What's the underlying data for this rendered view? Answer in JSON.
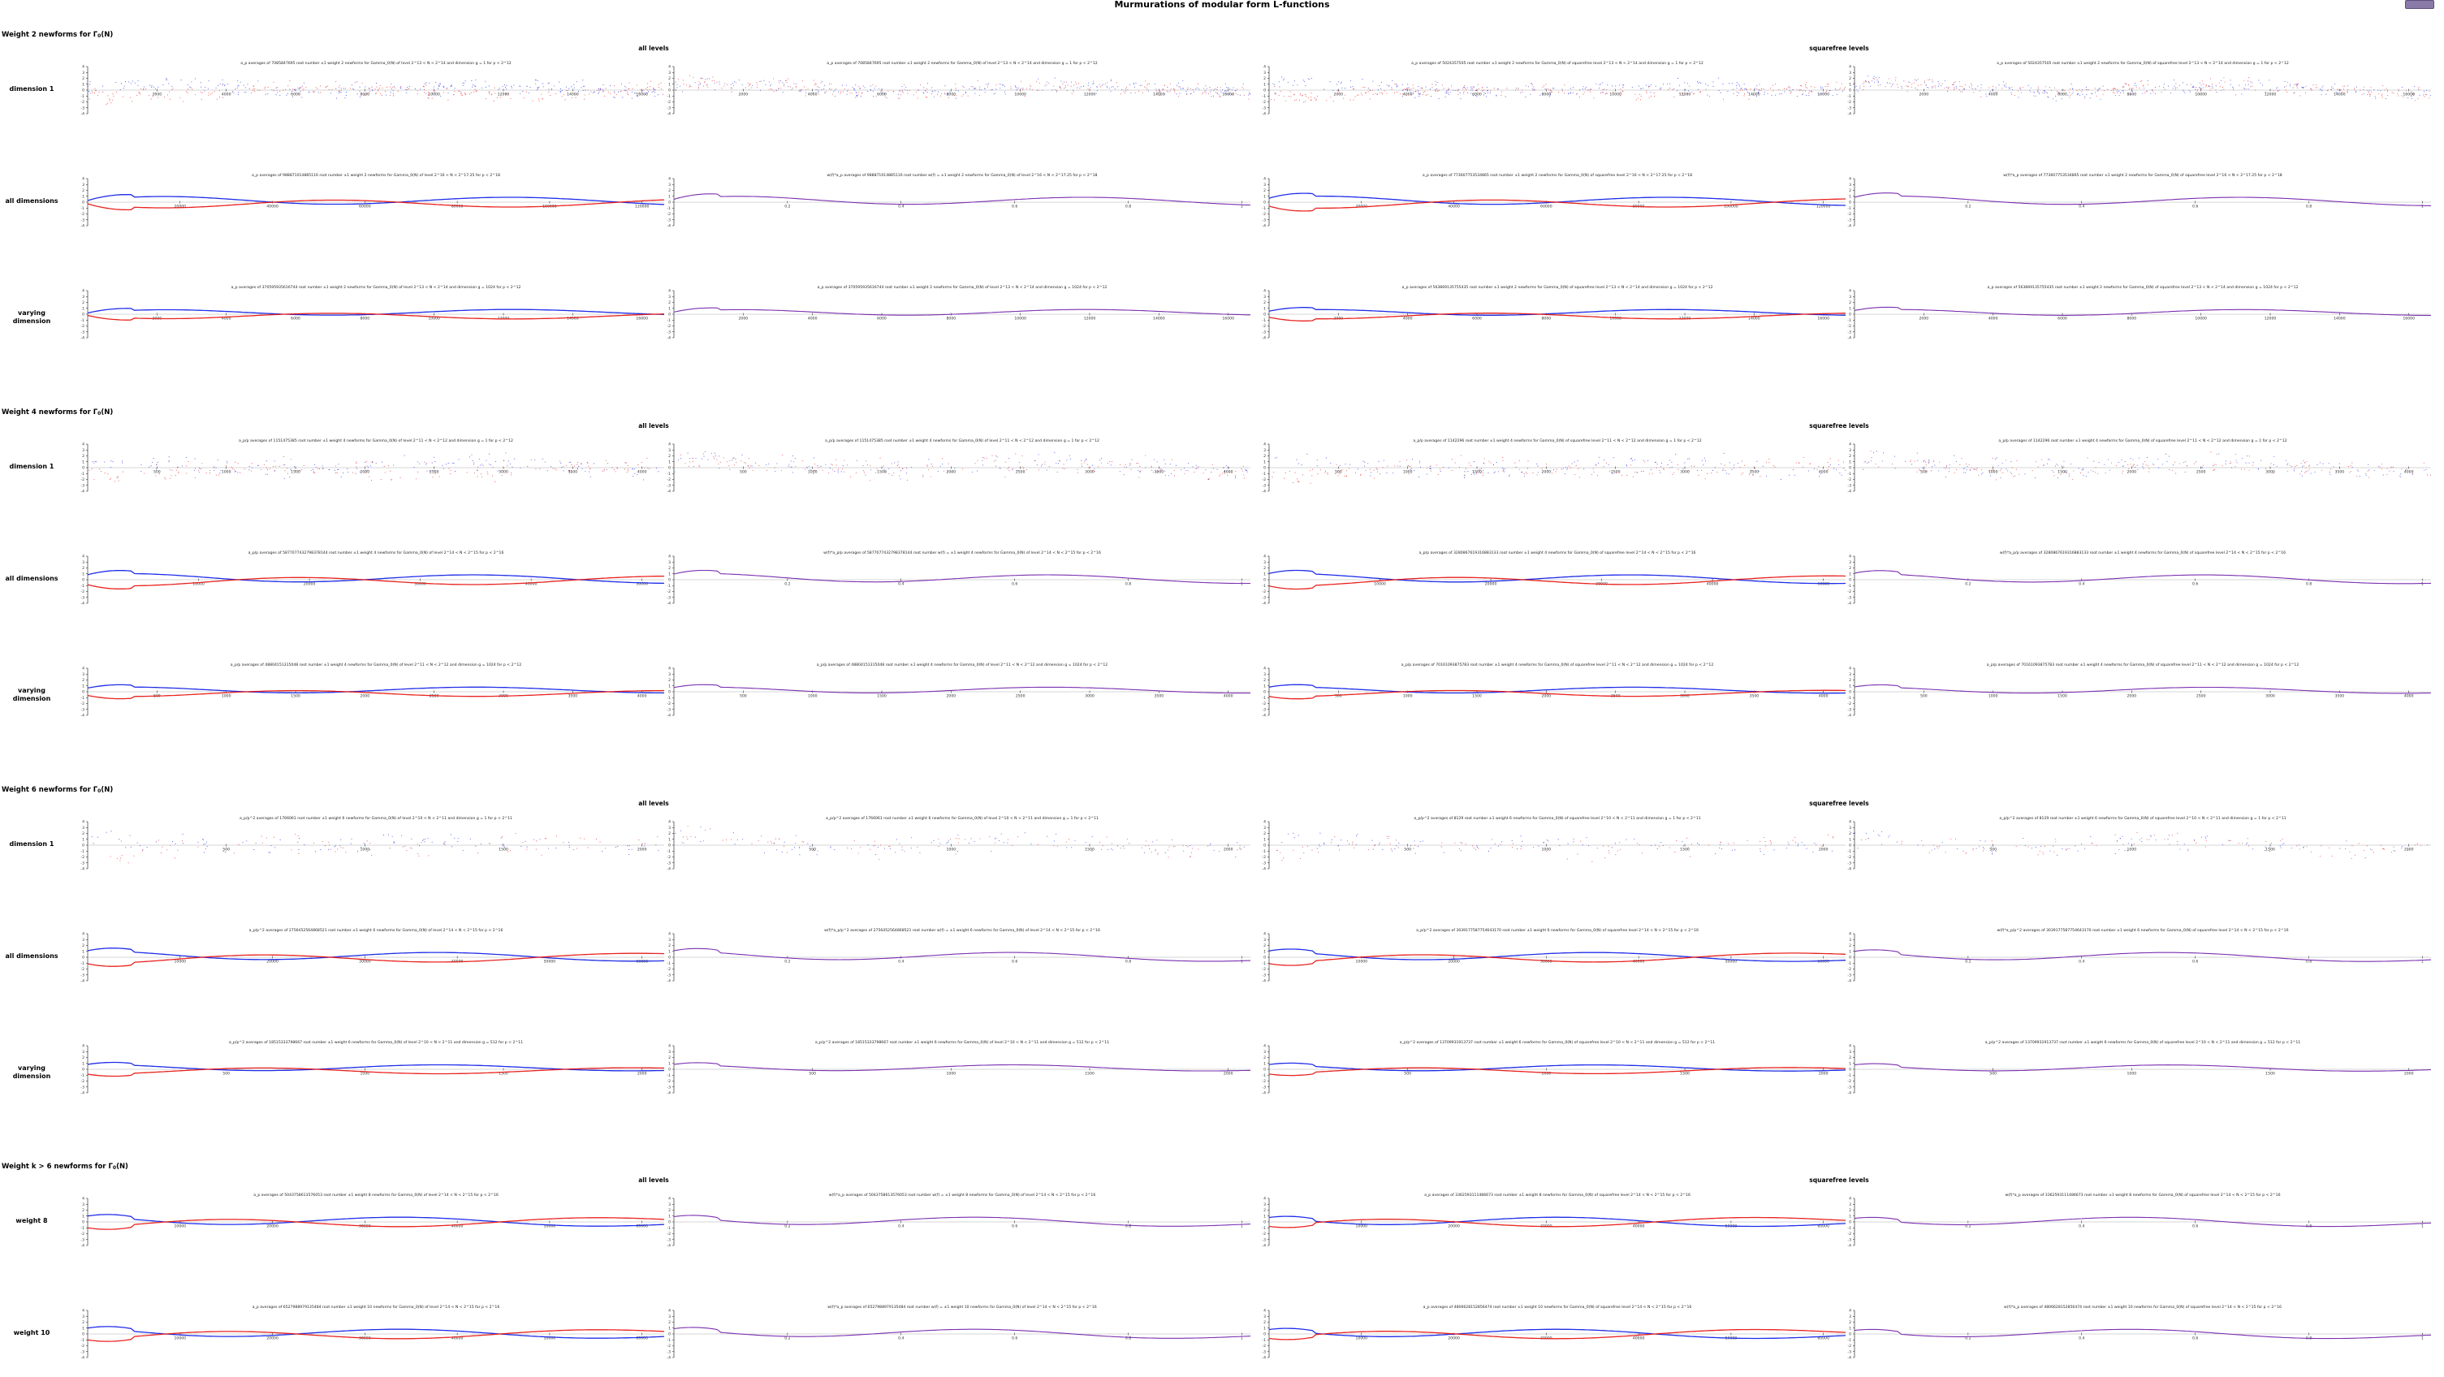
{
  "page": {
    "title": "Murmurations of modular form L-functions",
    "menu_button_label": "",
    "colors": {
      "odd": "#e8231f",
      "even": "#1f2de8",
      "combined": "#7a2fb0",
      "axis": "#111111",
      "zero_line": "#9a9a9a"
    }
  },
  "sections": [
    {
      "heading": {
        "prefix": "Weight 2 newforms for ",
        "symbol": "Γ",
        "subscript": "0",
        "suffix": "(N)"
      },
      "columns": [
        "all levels",
        "squarefree levels"
      ],
      "rows": [
        {
          "label": "dimension 1",
          "mode": "scatter",
          "panel_titles": [
            "a_p averages of 7085847695 root number ±1 weight 2 newforms for Gamma_0(N) of level 2^13 < N < 2^14 and dimension g = 1 for p < 2^12",
            "a_p averages of 7085847695 root number ±1 weight 2 newforms for Gamma_0(N) of level 2^13 < N < 2^14 and dimension g = 1 for p < 2^12",
            "a_p averages of 5024357505 root number ±1 weight 2 newforms for Gamma_0(N) of squarefree level 2^13 < N < 2^14 and dimension g = 1 for p < 2^12",
            "a_p averages of 5024357505 root number ±1 weight 2 newforms for Gamma_0(N) of squarefree level 2^13 < N < 2^14 and dimension g = 1 for p < 2^12"
          ]
        },
        {
          "label": "all dimensions",
          "mode": "line",
          "panel_titles": [
            "a_p averages of 988871014885116 root number ±1 weight 2 newforms for Gamma_0(N) of level 2^16 < N < 2^17.25 for p < 2^18",
            "w(f)*a_p averages of 988871014885116 root number w(f) = ±1 weight 2 newforms for Gamma_0(N) of level 2^16 < N < 2^17.25 for p < 2^18",
            "a_p averages of 773607753534865 root number ±1 weight 2 newforms for Gamma_0(N) of squarefree level 2^16 < N < 2^17.25 for p < 2^18",
            "w(f)*a_p averages of 773607753534865 root number ±1 weight 2 newforms for Gamma_0(N) of squarefree level 2^16 < N < 2^17.25 for p < 2^18"
          ]
        },
        {
          "label": "varying dimension",
          "mode": "line",
          "panel_titles": [
            "a_p averages of 370595935616744 root number ±1 weight 2 newforms for Gamma_0(N) of level 2^13 < N < 2^14 and dimension g = 1024 for p < 2^12",
            "a_p averages of 370595935616744 root number ±1 weight 2 newforms for Gamma_0(N) of level 2^13 < N < 2^14 and dimension g = 1024 for p < 2^12",
            "a_p averages of 563869135755435 root number ±1 weight 2 newforms for Gamma_0(N) of squarefree level 2^13 < N < 2^14 and dimension g = 1024 for p < 2^12",
            "a_p averages of 563869135755435 root number ±1 weight 2 newforms for Gamma_0(N) of squarefree level 2^13 < N < 2^14 and dimension g = 1024 for p < 2^12"
          ]
        }
      ]
    },
    {
      "heading": {
        "prefix": "Weight 4 newforms for ",
        "symbol": "Γ",
        "subscript": "0",
        "suffix": "(N)"
      },
      "columns": [
        "all levels",
        "squarefree levels"
      ],
      "rows": [
        {
          "label": "dimension 1",
          "mode": "scatter",
          "panel_titles": [
            "a_p/p averages of 1151475385 root number ±1 weight 4 newforms for Gamma_0(N) of level 2^11 < N < 2^12 and dimension g = 1 for p < 2^12",
            "a_p/p averages of 1151475385 root number ±1 weight 4 newforms for Gamma_0(N) of level 2^11 < N < 2^12 and dimension g = 1 for p < 2^12",
            "a_p/p averages of 1142296 root number ±1 weight 4 newforms for Gamma_0(N) of squarefree level 2^11 < N < 2^12 and dimension g = 1 for p < 2^12",
            "a_p/p averages of 1142296 root number ±1 weight 4 newforms for Gamma_0(N) of squarefree level 2^11 < N < 2^12 and dimension g = 1 for p < 2^12"
          ]
        },
        {
          "label": "all dimensions",
          "mode": "line",
          "panel_titles": [
            "a_p/p averages of 5877077432798378144 root number ±1 weight 4 newforms for Gamma_0(N) of level 2^14 < N < 2^15 for p < 2^16",
            "w(f)*a_p/p averages of 5877077432798378144 root number w(f) = ±1 weight 4 newforms for Gamma_0(N) of level 2^14 < N < 2^15 for p < 2^16",
            "a_p/p averages of 3280867619316883133 root number ±1 weight 4 newforms for Gamma_0(N) of squarefree level 2^14 < N < 2^15 for p < 2^16",
            "w(f)*a_p/p averages of 3280867619316883133 root number ±1 weight 4 newforms for Gamma_0(N) of squarefree level 2^14 < N < 2^15 for p < 2^16"
          ]
        },
        {
          "label": "varying dimension",
          "mode": "line",
          "panel_titles": [
            "a_p/p averages of 48804151315048 root number ±1 weight 4 newforms for Gamma_0(N) of level 2^11 < N < 2^12 and dimension g = 1024 for p < 2^12",
            "a_p/p averages of 48804151315048 root number ±1 weight 4 newforms for Gamma_0(N) of level 2^11 < N < 2^12 and dimension g = 1024 for p < 2^12",
            "a_p/p averages of 70161093875783 root number ±1 weight 4 newforms for Gamma_0(N) of squarefree level 2^11 < N < 2^12 and dimension g = 1024 for p < 2^12",
            "a_p/p averages of 70161093875783 root number ±1 weight 4 newforms for Gamma_0(N) of squarefree level 2^11 < N < 2^12 and dimension g = 1024 for p < 2^12"
          ]
        }
      ]
    },
    {
      "heading": {
        "prefix": "Weight 6 newforms for ",
        "symbol": "Γ",
        "subscript": "0",
        "suffix": "(N)"
      },
      "columns": [
        "all levels",
        "squarefree levels"
      ],
      "rows": [
        {
          "label": "dimension 1",
          "mode": "scatter",
          "panel_titles": [
            "a_p/p^2 averages of 1766061 root number ±1 weight 6 newforms for Gamma_0(N) of level 2^10 < N < 2^11 and dimension g = 1 for p < 2^11",
            "a_p/p^2 averages of 1766061 root number ±1 weight 6 newforms for Gamma_0(N) of level 2^10 < N < 2^11 and dimension g = 1 for p < 2^11",
            "a_p/p^2 averages of 8129 root number ±1 weight 6 newforms for Gamma_0(N) of squarefree level 2^10 < N < 2^11 and dimension g = 1 for p < 2^11",
            "a_p/p^2 averages of 8129 root number ±1 weight 6 newforms for Gamma_0(N) of squarefree level 2^10 < N < 2^11 and dimension g = 1 for p < 2^11"
          ]
        },
        {
          "label": "all dimensions",
          "mode": "line",
          "panel_titles": [
            "a_p/p^2 averages of 2756452564868521 root number ±1 weight 6 newforms for Gamma_0(N) of level 2^14 < N < 2^15 for p < 2^16",
            "w(f)*a_p/p^2 averages of 2756452564868521 root number w(f) = ±1 weight 6 newforms for Gamma_0(N) of level 2^14 < N < 2^15 for p < 2^16",
            "a_p/p^2 averages of 3039177587754643170 root number ±1 weight 6 newforms for Gamma_0(N) of squarefree level 2^14 < N < 2^15 for p < 2^16",
            "w(f)*a_p/p^2 averages of 3039177587754643170 root number ±1 weight 6 newforms for Gamma_0(N) of squarefree level 2^14 < N < 2^15 for p < 2^16"
          ]
        },
        {
          "label": "varying dimension",
          "mode": "line",
          "panel_titles": [
            "a_p/p^2 averages of 18515333798667 root number ±1 weight 6 newforms for Gamma_0(N) of level 2^10 < N < 2^11 and dimension g = 512 for p < 2^11",
            "a_p/p^2 averages of 18515333798667 root number ±1 weight 6 newforms for Gamma_0(N) of level 2^10 < N < 2^11 and dimension g = 512 for p < 2^11",
            "a_p/p^2 averages of 13709931913737 root number ±1 weight 6 newforms for Gamma_0(N) of squarefree level 2^10 < N < 2^11 and dimension g = 512 for p < 2^11",
            "a_p/p^2 averages of 13709931913737 root number ±1 weight 6 newforms for Gamma_0(N) of squarefree level 2^10 < N < 2^11 and dimension g = 512 for p < 2^11"
          ]
        }
      ]
    },
    {
      "heading": {
        "prefix": "Weight k > 6 newforms for ",
        "symbol": "Γ",
        "subscript": "0",
        "suffix": "(N)"
      },
      "columns": [
        "all levels",
        "squarefree levels"
      ],
      "rows": [
        {
          "label": "weight 8",
          "mode": "line",
          "panel_titles": [
            "a_p averages of 5043758613576053 root number ±1 weight 8 newforms for Gamma_0(N) of level 2^14 < N < 2^15 for p < 2^16",
            "w(f)*a_p averages of 5043758613576053 root number w(f) = ±1 weight 8 newforms for Gamma_0(N) of level 2^14 < N < 2^15 for p < 2^16",
            "a_p averages of 3362593111486673 root number ±1 weight 8 newforms for Gamma_0(N) of squarefree level 2^14 < N < 2^15 for p < 2^16",
            "w(f)*a_p averages of 3362593111486673 root number ±1 weight 8 newforms for Gamma_0(N) of squarefree level 2^14 < N < 2^15 for p < 2^16"
          ]
        },
        {
          "label": "weight 10",
          "mode": "line",
          "panel_titles": [
            "a_p averages of 6527988979135484 root number ±1 weight 10 newforms for Gamma_0(N) of level 2^14 < N < 2^15 for p < 2^16",
            "w(f)*a_p averages of 6527988979135484 root number w(f) = ±1 weight 10 newforms for Gamma_0(N) of level 2^14 < N < 2^15 for p < 2^16",
            "a_p averages of 4806628152856474 root number ±1 weight 10 newforms for Gamma_0(N) of squarefree level 2^14 < N < 2^15 for p < 2^16",
            "w(f)*a_p averages of 4806628152856474 root number ±1 weight 10 newforms for Gamma_0(N) of squarefree level 2^14 < N < 2^15 for p < 2^16"
          ]
        }
      ]
    }
  ],
  "chart_data": {
    "type": "scatter",
    "description_of_series": [
      "root number +1 (blue)",
      "root number -1 (red)",
      "w(f)*a_p combined (purple)"
    ],
    "y_ticks": [
      -4,
      -3,
      -2,
      -1,
      0,
      1,
      2,
      3,
      4
    ],
    "ylim": [
      -4,
      4
    ],
    "x_ticks_prime_panels": {
      "weight2_dim1": [
        2000,
        4000,
        6000,
        8000,
        10000,
        12000,
        14000,
        16000
      ],
      "weight2_alldim": [
        20000,
        40000,
        60000,
        80000,
        100000,
        120000
      ],
      "weight2_vardim": [
        2000,
        4000,
        6000,
        8000,
        10000,
        12000,
        14000,
        16000
      ],
      "weight4_dim1": [
        500,
        1000,
        1500,
        2000,
        2500,
        3000,
        3500,
        4000
      ],
      "weight4_alldim": [
        10000,
        20000,
        30000,
        40000,
        50000
      ],
      "weight4_vardim": [
        500,
        1000,
        1500,
        2000,
        2500,
        3000,
        3500,
        4000
      ],
      "weight6_dim1": [
        500,
        1000,
        1500,
        2000
      ],
      "weight6_alldim": [
        10000,
        20000,
        30000,
        40000,
        50000,
        60000
      ],
      "weight6_vardim": [
        500,
        1000,
        1500,
        2000
      ],
      "weightk_alldim": [
        10000,
        20000,
        30000,
        40000,
        50000,
        60000
      ]
    },
    "x_ticks_normalized_panels": [
      0.2,
      0.4,
      0.6,
      0.8,
      1
    ]
  }
}
